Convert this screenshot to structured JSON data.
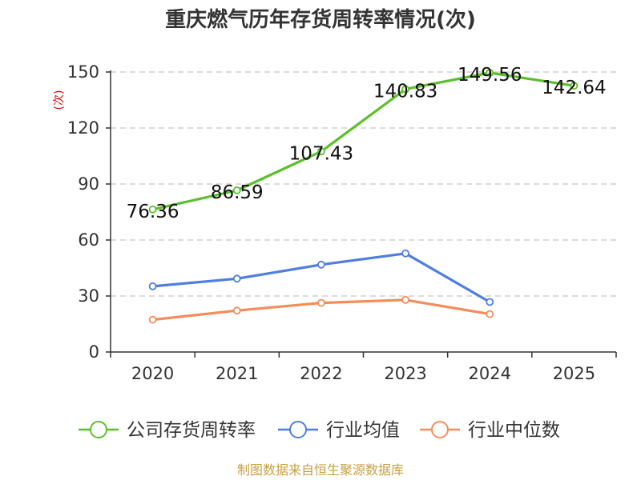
{
  "chart_data": {
    "type": "line",
    "title": "重庆燃气历年存货周转率情况(次)",
    "ylabel": "(次)",
    "xlabel": "",
    "categories": [
      "2020",
      "2021",
      "2022",
      "2023",
      "2024",
      "2025"
    ],
    "ylim": [
      0,
      150
    ],
    "yticks": [
      0,
      30,
      60,
      90,
      120,
      150
    ],
    "grid": true,
    "series": [
      {
        "name": "公司存货周转率",
        "color": "#5cbf2a",
        "values": [
          76.36,
          86.59,
          107.43,
          140.83,
          149.56,
          142.64
        ],
        "labels": [
          "76.36",
          "86.59",
          "107.43",
          "140.83",
          "149.56",
          "142.64"
        ]
      },
      {
        "name": "行业均值",
        "color": "#4f7ee0",
        "values": [
          35.2,
          39.3,
          46.8,
          52.8,
          26.8,
          null
        ]
      },
      {
        "name": "行业中位数",
        "color": "#f58c5a",
        "values": [
          17.3,
          22.2,
          26.3,
          27.9,
          20.3,
          null
        ]
      }
    ],
    "legend_position": "bottom",
    "source": "制图数据来自恒生聚源数据库"
  }
}
